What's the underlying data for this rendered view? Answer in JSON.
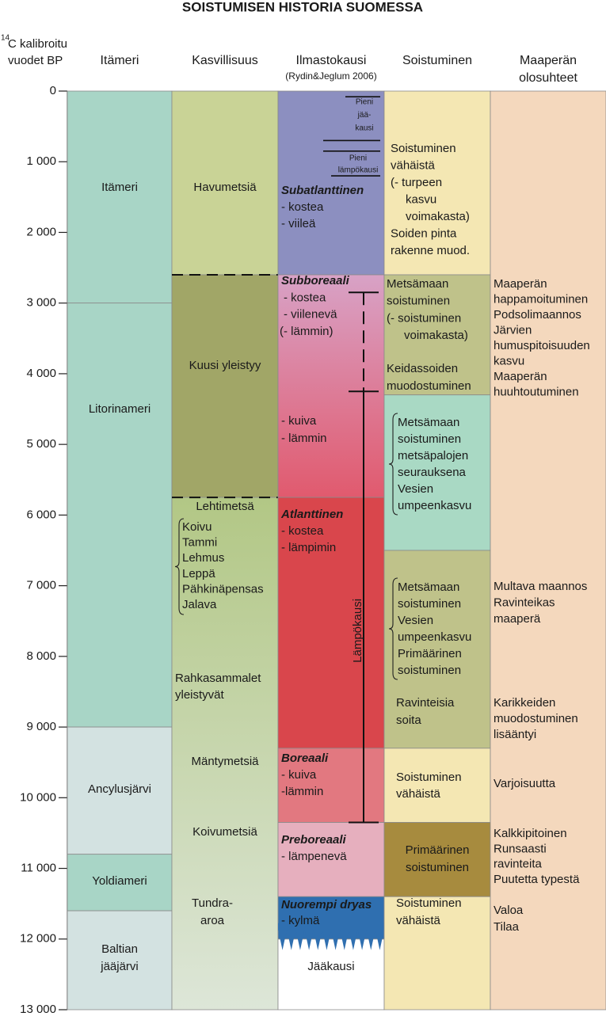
{
  "title": "SOISTUMISEN HISTORIA SUOMESSA",
  "axis": {
    "label_super": "14",
    "label": [
      "C kalibroitu",
      "vuodet BP"
    ],
    "lim": [
      0,
      13000
    ],
    "ticks": [
      0,
      {
        "value": 1000,
        "label": "1 000"
      },
      {
        "value": 2000,
        "label": "2 000"
      },
      {
        "value": 3000,
        "label": "3 000"
      },
      {
        "value": 4000,
        "label": "4 000"
      },
      {
        "value": 5000,
        "label": "5 000"
      },
      {
        "value": 6000,
        "label": "6 000"
      },
      {
        "value": 7000,
        "label": "7 000"
      },
      {
        "value": 8000,
        "label": "8 000"
      },
      {
        "value": 9000,
        "label": "9 000"
      },
      {
        "value": 10000,
        "label": "10 000"
      },
      {
        "value": 11000,
        "label": "11 000"
      },
      {
        "value": 12000,
        "label": "12 000"
      },
      {
        "value": 13000,
        "label": "13 000"
      }
    ]
  },
  "columns": [
    {
      "header": [
        "Itämeri"
      ],
      "blocks": [
        {
          "from": 0,
          "to": 3000,
          "color": "#a8d5c6"
        },
        {
          "from": 3000,
          "to": 9000,
          "color": "#a8d5c6"
        },
        {
          "from": 9000,
          "to": 10800,
          "color": "#d3e2e1"
        },
        {
          "from": 10800,
          "to": 11600,
          "color": "#a8d5c6"
        },
        {
          "from": 11600,
          "to": 13000,
          "color": "#d3e2e1"
        }
      ],
      "texts": [
        [
          "Itämeri"
        ],
        [
          "Litorinameri"
        ],
        [
          "Ancylusjärvi"
        ],
        [
          "Yoldiameri"
        ],
        [
          "Baltian",
          "jääjärvi"
        ]
      ]
    },
    {
      "header": [
        "Kasvillisuus"
      ],
      "dashed_boundaries": true,
      "blocks": [
        {
          "from": 0,
          "to": 2600,
          "color": "#c9d396"
        },
        {
          "from": 2600,
          "to": 5750,
          "color": "#a1a667"
        },
        {
          "from": 5750,
          "to": 13000,
          "color": [
            "#b2c785",
            "#dde6d8"
          ]
        }
      ],
      "texts": [
        [
          "Havumetsiä"
        ],
        [
          "Kuusi yleistyy"
        ],
        [
          "Lehtimetsä"
        ],
        [
          "Koivu",
          "Tammi",
          "Lehmus",
          "Leppä",
          "Pähkinäpensas",
          "Jalava"
        ],
        [
          "Rahkasammalet",
          "yleistyvät"
        ],
        [
          "Mäntymetsiä"
        ],
        [
          "Koivumetsiä"
        ],
        [
          "Tundra-",
          "aroa"
        ]
      ]
    },
    {
      "header": [
        "Ilmastokausi",
        "(Rydin&Jeglum 2006)"
      ],
      "blocks": [
        {
          "from": 0,
          "to": 2600,
          "color": "#8c8fc0"
        },
        {
          "from": 2600,
          "to": 5750,
          "color": [
            "#d8a2c6",
            "#e15a6e"
          ]
        },
        {
          "from": 5750,
          "to": 9300,
          "color": "#d9464c"
        },
        {
          "from": 9300,
          "to": 10350,
          "color": "#e27880"
        },
        {
          "from": 10350,
          "to": 11400,
          "color": "#e6afbe"
        },
        {
          "from": 12000,
          "to": 13000,
          "color": "#ffffff"
        },
        {
          "from": 11400,
          "to": 12000,
          "color": "#2f6fb0"
        }
      ],
      "small_periods": [
        {
          "from": 80,
          "to": 700
        },
        {
          "from": 850,
          "to": 1200
        }
      ],
      "texts": [
        [
          "Pieni",
          "jää-",
          "kausi"
        ],
        [
          "Pieni",
          "lämpökausi"
        ],
        [
          "Subatlanttinen",
          "- kostea",
          "- viileä"
        ],
        [
          "Subboreaali",
          "- kostea",
          "- viilenevä",
          "(- lämmin)"
        ],
        [
          "- kuiva",
          "- lämmin"
        ],
        [
          "Atlanttinen",
          "- kostea",
          "- lämpimin"
        ],
        [
          "Boreaali",
          "- kuiva",
          "-lämmin"
        ],
        [
          "Preboreaali",
          "- lämpenevä"
        ],
        [
          "Nuorempi dryas",
          "- kylmä"
        ],
        [
          "Jääkausi"
        ]
      ],
      "warm_period": {
        "label": "Lämpökausi",
        "from": 2850,
        "solid_from": 4250,
        "to": 10350
      }
    },
    {
      "header": [
        "Soistuminen"
      ],
      "blocks": [
        {
          "from": 0,
          "to": 2600,
          "color": "#f4e7b3"
        },
        {
          "from": 2600,
          "to": 4300,
          "color": "#bfc28a"
        },
        {
          "from": 4300,
          "to": 6500,
          "color": "#a9d9c4"
        },
        {
          "from": 6500,
          "to": 9300,
          "color": "#bfc28a"
        },
        {
          "from": 9300,
          "to": 10350,
          "color": "#f4e7b3"
        },
        {
          "from": 10350,
          "to": 11400,
          "color": "#a78b3e"
        },
        {
          "from": 11400,
          "to": 13000,
          "color": "#f4e7b3"
        }
      ],
      "texts": [
        [
          "Soistuminen",
          "vähäistä",
          "(- turpeen",
          "kasvu",
          "voimakasta)",
          "Soiden pinta",
          "rakenne muod."
        ],
        [
          "Metsämaan",
          "soistuminen",
          "(- soistuminen",
          "voimakasta)"
        ],
        [
          "Keidassoiden",
          "muodostuminen"
        ],
        [
          "Metsämaan",
          "soistuminen",
          "metsäpalojen",
          "seurauksena",
          "Vesien",
          "umpeenkasvu"
        ],
        [
          "Metsämaan",
          "soistuminen",
          "Vesien",
          "umpeenkasvu",
          "Primäärinen",
          "soistuminen"
        ],
        [
          "Ravinteisia",
          "soita"
        ],
        [
          "Soistuminen",
          "vähäistä"
        ],
        [
          "Primäärinen",
          "soistuminen"
        ],
        [
          "Soistuminen",
          "vähäistä"
        ]
      ]
    },
    {
      "header": [
        "Maaperän",
        "olosuhteet"
      ],
      "blocks": [
        {
          "from": 0,
          "to": 13000,
          "color": "#f4d8bd"
        }
      ],
      "texts": [
        [
          "Maaperän",
          "happamoituminen",
          "Podsolimaannos",
          "Järvien",
          "humuspitoisuuden",
          "kasvu",
          "Maaperän",
          "huuhtoutuminen"
        ],
        [
          "Multava maannos",
          "Ravinteikas",
          "maaperä"
        ],
        [
          "Karikkeiden",
          "muodostuminen",
          "lisääntyi"
        ],
        [
          "Varjoisuutta"
        ],
        [
          "Kalkkipitoinen",
          "Runsaasti",
          "ravinteita",
          "Puutetta typestä"
        ],
        [
          "Valoa",
          "Tilaa"
        ]
      ]
    }
  ]
}
